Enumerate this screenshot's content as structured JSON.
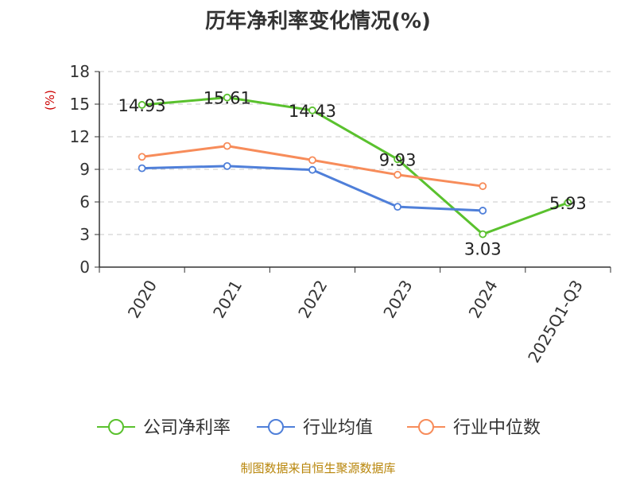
{
  "chart_data": {
    "type": "line",
    "title": "历年净利率变化情况(%)",
    "ylabel": "(%)",
    "xlabel": "",
    "categories": [
      "2020",
      "2021",
      "2022",
      "2023",
      "2024",
      "2025Q1-Q3"
    ],
    "ylim": [
      0,
      18
    ],
    "yticks": [
      0,
      3,
      6,
      9,
      12,
      15,
      18
    ],
    "grid": true,
    "legend_position": "bottom",
    "series": [
      {
        "name": "公司净利率",
        "color": "#5ac12e",
        "values": [
          14.93,
          15.61,
          14.43,
          9.93,
          3.03,
          5.93
        ],
        "labels": [
          "14.93",
          "15.61",
          "14.43",
          "9.93",
          "3.03",
          "5.93"
        ]
      },
      {
        "name": "行业均值",
        "color": "#4f7fd9",
        "values": [
          9.1,
          9.3,
          8.95,
          5.55,
          5.2,
          null
        ]
      },
      {
        "name": "行业中位数",
        "color": "#f78c5a",
        "values": [
          10.15,
          11.15,
          9.85,
          8.5,
          7.45,
          null
        ]
      }
    ]
  },
  "source": "制图数据来自恒生聚源数据库"
}
